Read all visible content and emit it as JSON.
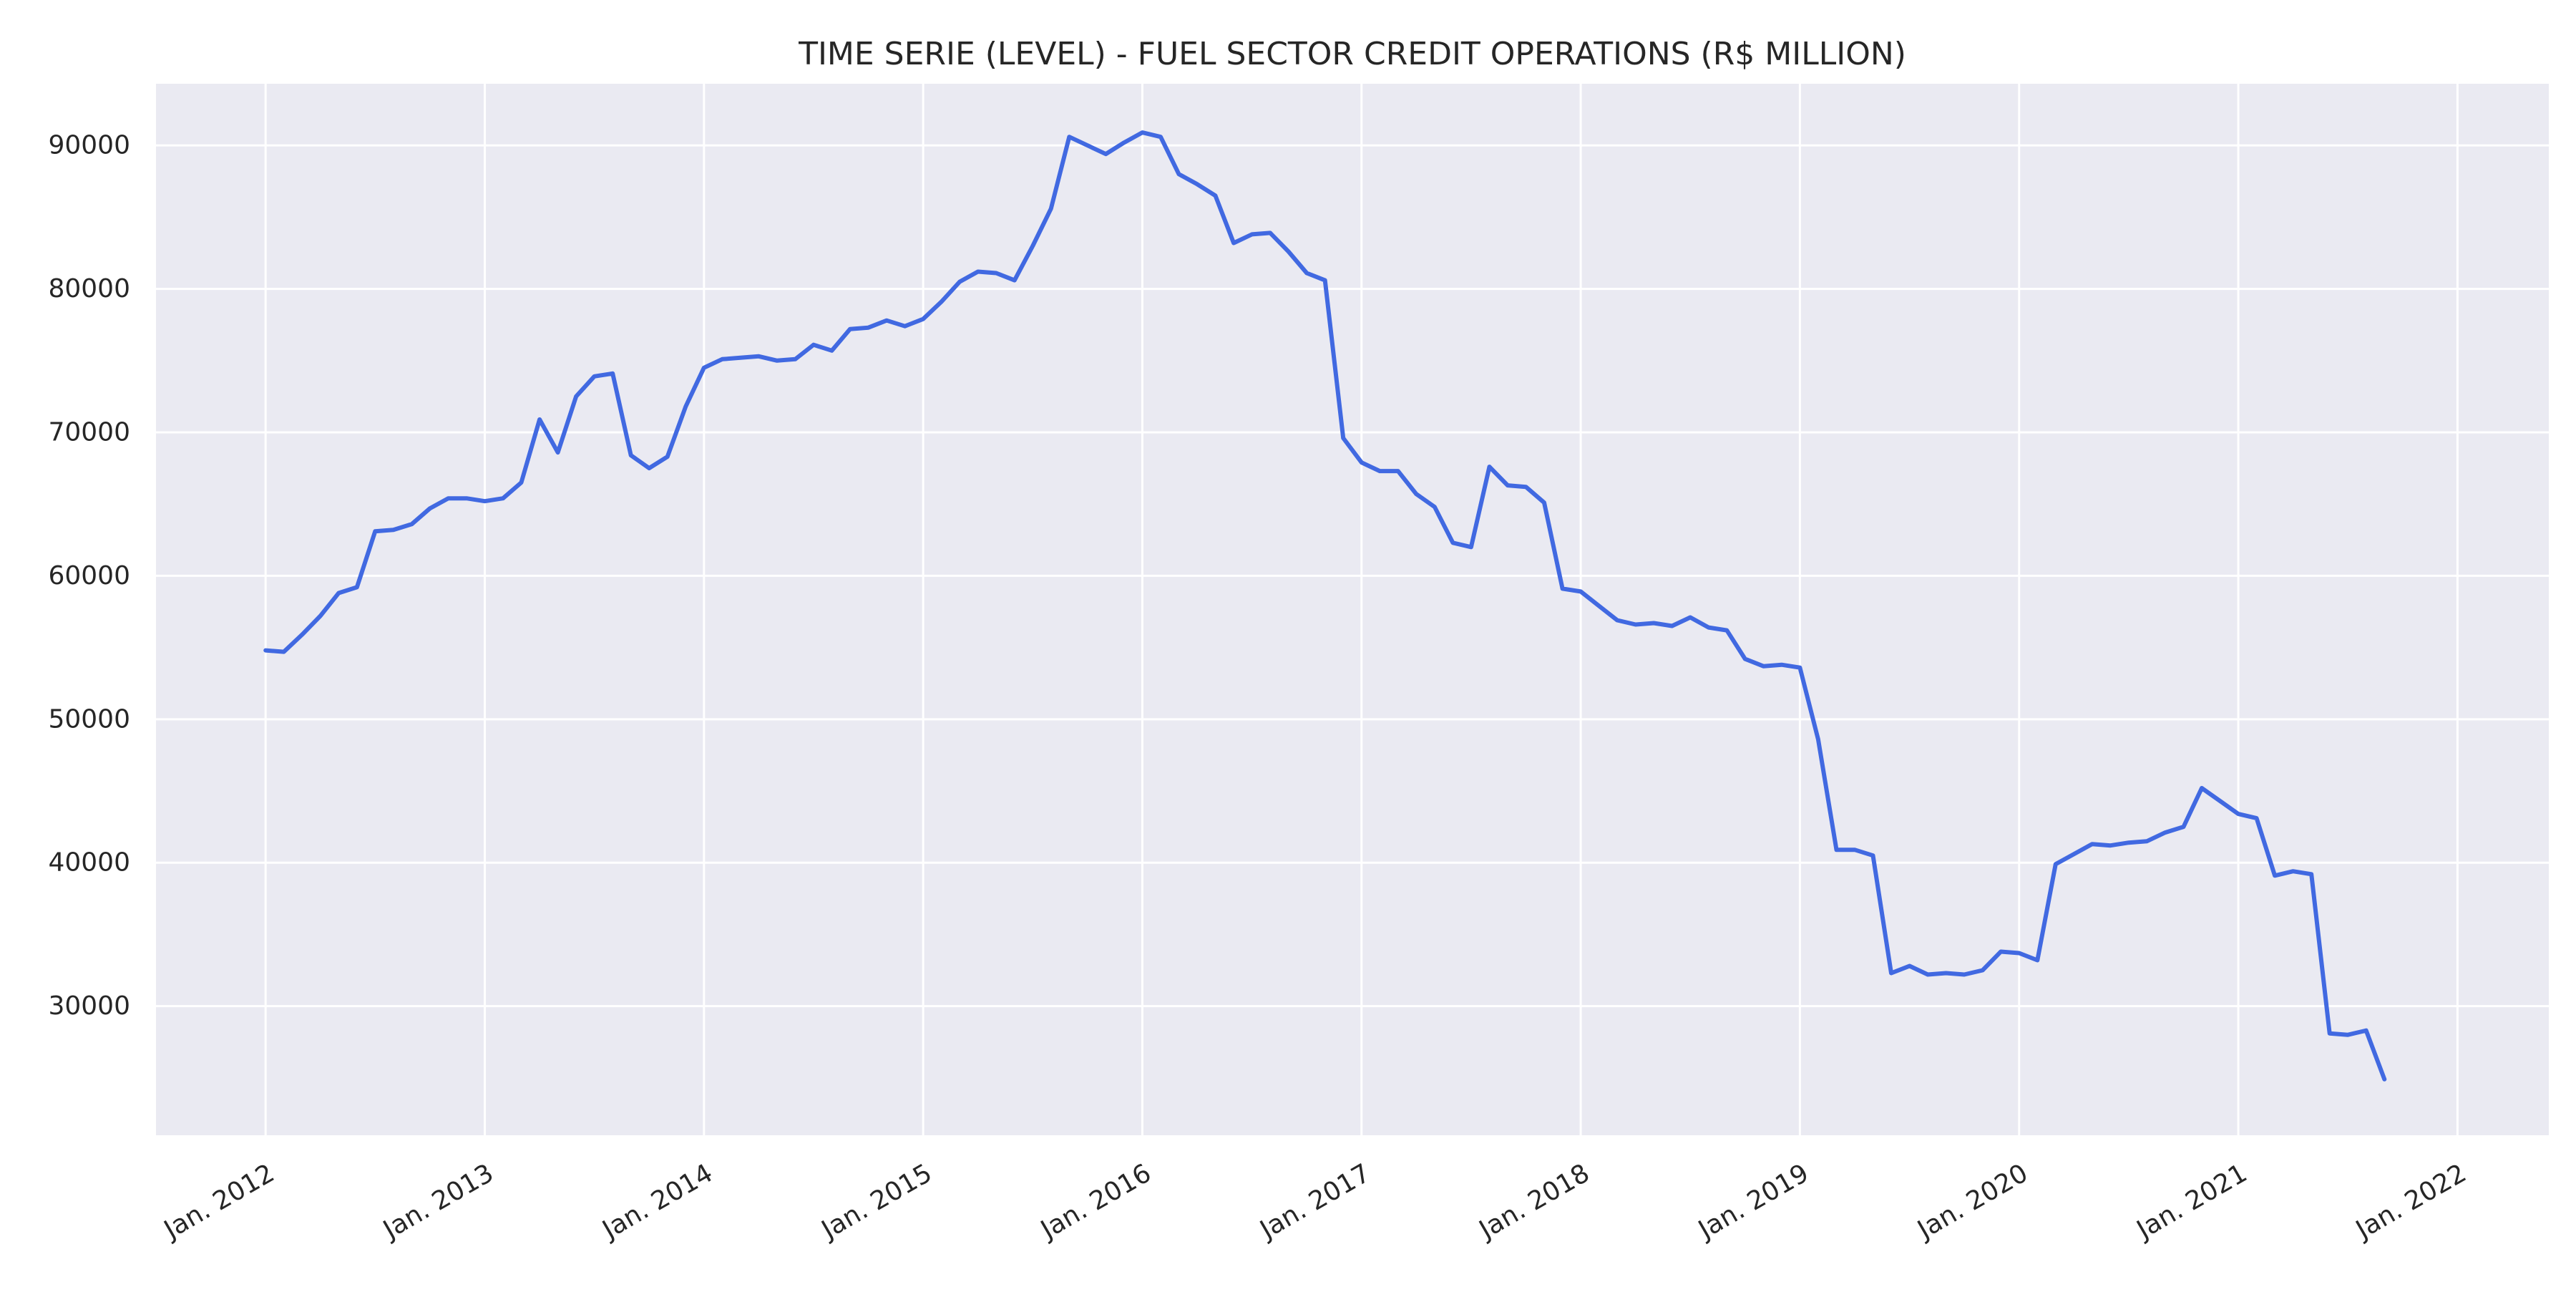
{
  "chart_data": {
    "type": "line",
    "title": "TIME SERIE (LEVEL) - FUEL SECTOR CREDIT OPERATIONS (R$ MILLION)",
    "xlabel": "",
    "ylabel": "",
    "x_range": [
      "2011-07",
      "2022-06"
    ],
    "ylim": [
      21000,
      94300
    ],
    "grid": true,
    "legend": "none",
    "colors": {
      "line": "#4169e1",
      "plot_bg": "#eaeaf2",
      "grid": "#ffffff"
    },
    "x_ticks": [
      {
        "label": "Jan. 2012",
        "date": "2012-01"
      },
      {
        "label": "Jan. 2013",
        "date": "2013-01"
      },
      {
        "label": "Jan. 2014",
        "date": "2014-01"
      },
      {
        "label": "Jan. 2015",
        "date": "2015-01"
      },
      {
        "label": "Jan. 2016",
        "date": "2016-01"
      },
      {
        "label": "Jan. 2017",
        "date": "2017-01"
      },
      {
        "label": "Jan. 2018",
        "date": "2018-01"
      },
      {
        "label": "Jan. 2019",
        "date": "2019-01"
      },
      {
        "label": "Jan. 2020",
        "date": "2020-01"
      },
      {
        "label": "Jan. 2021",
        "date": "2021-01"
      },
      {
        "label": "Jan. 2022",
        "date": "2022-01"
      }
    ],
    "y_ticks": [
      30000,
      40000,
      50000,
      60000,
      70000,
      80000,
      90000
    ],
    "series": [
      {
        "x": [
          "2012-01",
          "2012-02",
          "2012-03",
          "2012-04",
          "2012-05",
          "2012-06",
          "2012-07",
          "2012-08",
          "2012-09",
          "2012-10",
          "2012-11",
          "2012-12",
          "2013-01",
          "2013-02",
          "2013-03",
          "2013-04",
          "2013-05",
          "2013-06",
          "2013-07",
          "2013-08",
          "2013-09",
          "2013-10",
          "2013-11",
          "2013-12",
          "2014-01",
          "2014-02",
          "2014-03",
          "2014-04",
          "2014-05",
          "2014-06",
          "2014-07",
          "2014-08",
          "2014-09",
          "2014-10",
          "2014-11",
          "2014-12",
          "2015-01",
          "2015-02",
          "2015-03",
          "2015-04",
          "2015-05",
          "2015-06",
          "2015-07",
          "2015-08",
          "2015-09",
          "2015-10",
          "2015-11",
          "2015-12",
          "2016-01",
          "2016-02",
          "2016-03",
          "2016-04",
          "2016-05",
          "2016-06",
          "2016-07",
          "2016-08",
          "2016-09",
          "2016-10",
          "2016-11",
          "2016-12",
          "2017-01",
          "2017-02",
          "2017-03",
          "2017-04",
          "2017-05",
          "2017-06",
          "2017-07",
          "2017-08",
          "2017-09",
          "2017-10",
          "2017-11",
          "2017-12",
          "2018-01",
          "2018-02",
          "2018-03",
          "2018-04",
          "2018-05",
          "2018-06",
          "2018-07",
          "2018-08",
          "2018-09",
          "2018-10",
          "2018-11",
          "2018-12",
          "2019-01",
          "2019-02",
          "2019-03",
          "2019-04",
          "2019-05",
          "2019-06",
          "2019-07",
          "2019-08",
          "2019-09",
          "2019-10",
          "2019-11",
          "2019-12",
          "2020-01",
          "2020-02",
          "2020-03",
          "2020-04",
          "2020-05",
          "2020-06",
          "2020-07",
          "2020-08",
          "2020-09",
          "2020-10",
          "2020-11",
          "2020-12",
          "2021-01",
          "2021-02",
          "2021-03",
          "2021-04",
          "2021-05",
          "2021-06",
          "2021-07",
          "2021-08",
          "2021-09"
        ],
        "values": [
          54800,
          54700,
          55900,
          57200,
          58800,
          59200,
          63100,
          63200,
          63600,
          64700,
          65400,
          65400,
          65200,
          65400,
          66500,
          70900,
          68600,
          72500,
          73900,
          74100,
          68400,
          67500,
          68300,
          71800,
          74500,
          75100,
          75200,
          75300,
          75000,
          75100,
          76100,
          75700,
          77200,
          77300,
          77800,
          77400,
          77900,
          79100,
          80500,
          81200,
          81100,
          80600,
          83000,
          85600,
          90600,
          90000,
          89400,
          90200,
          90900,
          90600,
          88000,
          87300,
          86500,
          83200,
          83800,
          83900,
          82600,
          81100,
          80600,
          69600,
          67900,
          67300,
          67300,
          65700,
          64800,
          62300,
          62000,
          67600,
          66300,
          66200,
          65100,
          59100,
          58900,
          57900,
          56900,
          56600,
          56700,
          56500,
          57100,
          56400,
          56200,
          54200,
          53700,
          53800,
          53600,
          48600,
          40900,
          40900,
          40500,
          32300,
          32800,
          32200,
          32300,
          32200,
          32500,
          33800,
          33700,
          33200,
          39900,
          40600,
          41300,
          41200,
          41400,
          41500,
          42100,
          42500,
          45200,
          44300,
          43400,
          43100,
          39100,
          39400,
          39200,
          28100,
          28000,
          28300,
          24900
        ]
      }
    ]
  }
}
